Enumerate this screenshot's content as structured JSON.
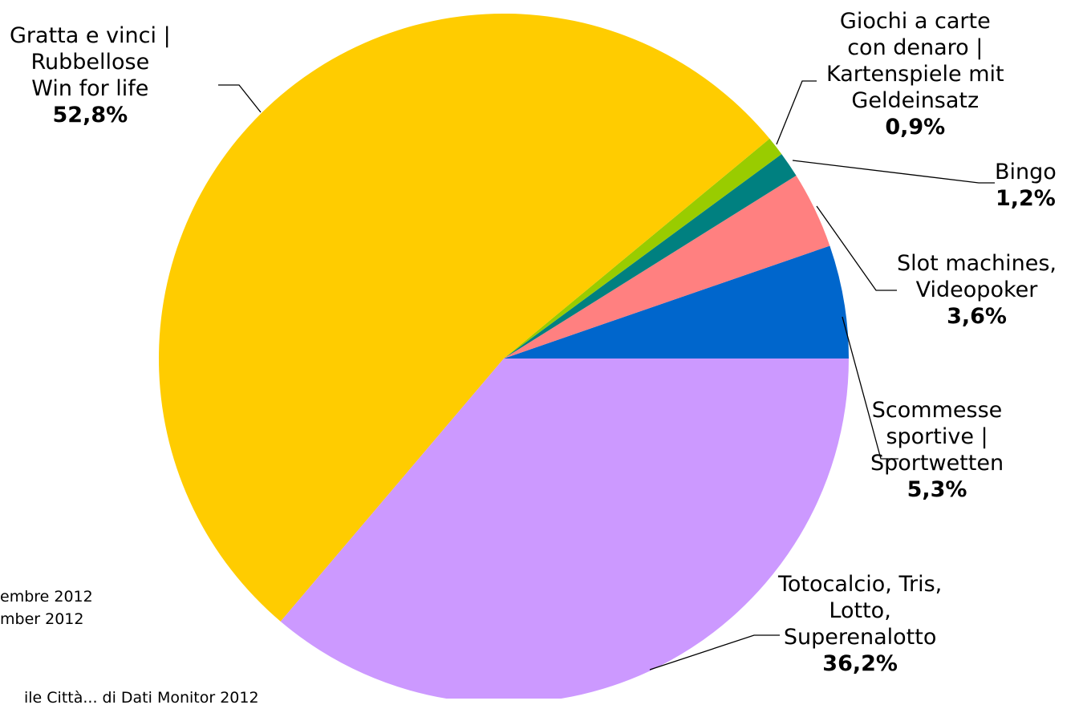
{
  "chart_data": {
    "type": "pie",
    "start_angle_deg": 0,
    "direction": "counterclockwise",
    "slices": [
      {
        "label": "Scommesse\nsportive |\nSportwetten",
        "percent_label": "5,3%",
        "value": 5.3,
        "color": "#0066cc"
      },
      {
        "label": "Slot machines,\nVideopoker",
        "percent_label": "3,6%",
        "value": 3.6,
        "color": "#ff8080"
      },
      {
        "label": "Bingo",
        "percent_label": "1,2%",
        "value": 1.2,
        "color": "#008080"
      },
      {
        "label": "Giochi a carte\ncon denaro |\nKartenspiele mit\nGeldeinsatz",
        "percent_label": "0,9%",
        "value": 0.9,
        "color": "#99cc00"
      },
      {
        "label": "Gratta e vinci |\nRubbellose\nWin for life",
        "percent_label": "52,8%",
        "value": 52.8,
        "color": "#ffcc00"
      },
      {
        "label": "Totocalcio, Tris,\nLotto,\nSuperenalotto",
        "percent_label": "36,2%",
        "value": 36.2,
        "color": "#cc99ff"
      }
    ]
  },
  "side_notes": [
    "embre 2012",
    "mber 2012"
  ],
  "source_fragment": "ile Città... di Dati Monitor 2012"
}
